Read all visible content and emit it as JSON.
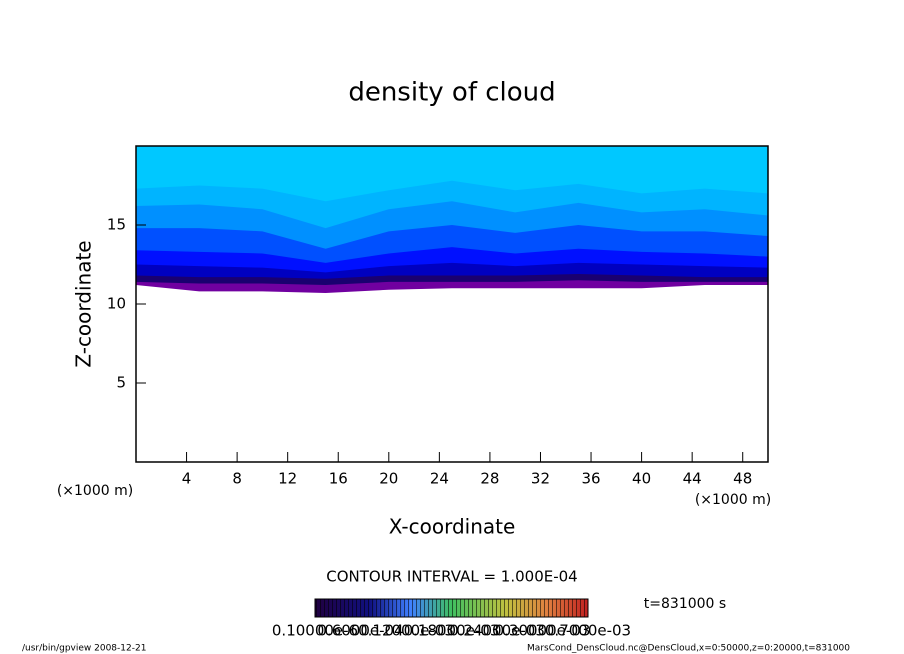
{
  "chart_data": {
    "type": "contourf",
    "title": "density of cloud",
    "x_label": "X-coordinate",
    "y_label": "Z-coordinate",
    "x_unit_left": "(×1000 m)",
    "x_unit_right": "(×1000 m)",
    "x": [
      0,
      5,
      10,
      15,
      20,
      25,
      30,
      35,
      40,
      45,
      50
    ],
    "bands": [
      {
        "color": "#7000a0",
        "bottom": [
          11.2,
          10.8,
          10.8,
          10.7,
          10.9,
          11.0,
          11.0,
          11.0,
          11.0,
          11.2,
          11.2
        ]
      },
      {
        "color": "#1a0070",
        "bottom": [
          11.4,
          11.3,
          11.3,
          11.2,
          11.4,
          11.4,
          11.4,
          11.5,
          11.4,
          11.4,
          11.4
        ]
      },
      {
        "color": "#0000c0",
        "bottom": [
          11.8,
          11.7,
          11.7,
          11.6,
          11.8,
          11.8,
          11.8,
          11.9,
          11.8,
          11.7,
          11.7
        ]
      },
      {
        "color": "#0010ff",
        "bottom": [
          12.5,
          12.4,
          12.3,
          12.0,
          12.4,
          12.6,
          12.4,
          12.6,
          12.5,
          12.4,
          12.3
        ]
      },
      {
        "color": "#0050ff",
        "bottom": [
          13.4,
          13.3,
          13.2,
          12.6,
          13.2,
          13.6,
          13.2,
          13.5,
          13.3,
          13.2,
          13.0
        ]
      },
      {
        "color": "#0090ff",
        "bottom": [
          14.8,
          14.8,
          14.6,
          13.5,
          14.6,
          15.0,
          14.5,
          15.0,
          14.6,
          14.6,
          14.3
        ]
      },
      {
        "color": "#00b4ff",
        "bottom": [
          16.2,
          16.3,
          16.0,
          14.8,
          16.0,
          16.5,
          15.8,
          16.4,
          15.8,
          16.0,
          15.6
        ]
      },
      {
        "color": "#00c8ff",
        "bottom": [
          17.3,
          17.5,
          17.3,
          16.5,
          17.2,
          17.8,
          17.2,
          17.6,
          17.0,
          17.3,
          17.0
        ]
      }
    ],
    "xlim": [
      0,
      50
    ],
    "ylim": [
      0,
      20
    ],
    "xticks": [
      4,
      8,
      12,
      16,
      20,
      24,
      28,
      32,
      36,
      40,
      44,
      48
    ],
    "yticks": [
      5,
      10,
      15
    ],
    "contour_interval": "CONTOUR INTERVAL = 1.000E-04",
    "time_label": "t=831000 s",
    "colorbar_labels": [
      "0.10000e-6",
      "0.6000e-04",
      "0.12000e-03",
      "0.18000e-03",
      "0.24000e-03",
      "0.30000e-03",
      "0.7000e-03"
    ],
    "footer_left": "/usr/bin/gpview   2008-12-21",
    "footer_right": "MarsCond_DensCloud.nc@DensCloud,x=0:50000,z=0:20000,t=831000"
  }
}
